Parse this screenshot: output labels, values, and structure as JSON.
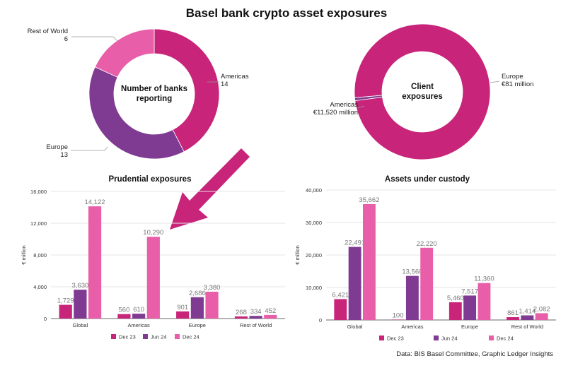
{
  "title": "Basel bank crypto asset exposures",
  "source": "Data: BIS Basel Committee, Graphic Ledger Insights",
  "colors": {
    "Dec 23": "#c7247a",
    "Jun 24": "#7f3a91",
    "Dec 24": "#e85ea8",
    "arrow": "#c7247a"
  },
  "chart_data": [
    {
      "type": "pie",
      "style": "donut",
      "title": "Number of banks reporting",
      "slices": [
        {
          "label": "Americas",
          "value": 14,
          "value_label": "14",
          "color": "#c7247a"
        },
        {
          "label": "Europe",
          "value": 13,
          "value_label": "13",
          "color": "#7f3a91"
        },
        {
          "label": "Rest of World",
          "value": 6,
          "value_label": "6",
          "color": "#e85ea8"
        }
      ]
    },
    {
      "type": "pie",
      "style": "donut",
      "title": "Client exposures",
      "slices": [
        {
          "label": "Americas",
          "value": 11520,
          "value_label": "€11,520 million",
          "color": "#c7247a"
        },
        {
          "label": "Europe",
          "value": 81,
          "value_label": "€81 million",
          "color": "#7f3a91"
        }
      ]
    },
    {
      "type": "bar",
      "title": "Prudential exposures",
      "ylabel": "€ million",
      "ylim": [
        0,
        16000
      ],
      "yticks": [
        0,
        4000,
        8000,
        12000,
        16000
      ],
      "ytick_labels": [
        "0",
        "4,000",
        "8,000",
        "12,000",
        "16,000"
      ],
      "grid": true,
      "legend": "bottom",
      "categories": [
        "Global",
        "Americas",
        "Europe",
        "Rest of World"
      ],
      "series": [
        {
          "name": "Dec 23",
          "values": [
            1729,
            560,
            901,
            268
          ],
          "labels": [
            "1,729",
            "560",
            "901",
            "268"
          ]
        },
        {
          "name": "Jun 24",
          "values": [
            3630,
            610,
            2686,
            334
          ],
          "labels": [
            "3,630",
            "610",
            "2,686",
            "334"
          ]
        },
        {
          "name": "Dec 24",
          "values": [
            14122,
            10290,
            3380,
            452
          ],
          "labels": [
            "14,122",
            "10,290",
            "3,380",
            "452"
          ]
        }
      ]
    },
    {
      "type": "bar",
      "title": "Assets under custody",
      "ylabel": "€ million",
      "ylim": [
        0,
        40000
      ],
      "yticks": [
        0,
        10000,
        20000,
        30000,
        40000
      ],
      "ytick_labels": [
        "0",
        "10,000",
        "20,000",
        "30,000",
        "40,000"
      ],
      "grid": true,
      "legend": "bottom",
      "categories": [
        "Global",
        "Americas",
        "Europe",
        "Rest of World"
      ],
      "series": [
        {
          "name": "Dec 23",
          "values": [
            6421,
            100,
            5460,
            861
          ],
          "labels": [
            "6,421",
            "100",
            "5,460",
            "861"
          ]
        },
        {
          "name": "Jun 24",
          "values": [
            22491,
            13560,
            7517,
            1414
          ],
          "labels": [
            "22,491",
            "13,560",
            "7,517",
            "1,414"
          ]
        },
        {
          "name": "Dec 24",
          "values": [
            35662,
            22220,
            11360,
            2082
          ],
          "labels": [
            "35,662",
            "22,220",
            "11,360",
            "2,082"
          ]
        }
      ]
    }
  ]
}
